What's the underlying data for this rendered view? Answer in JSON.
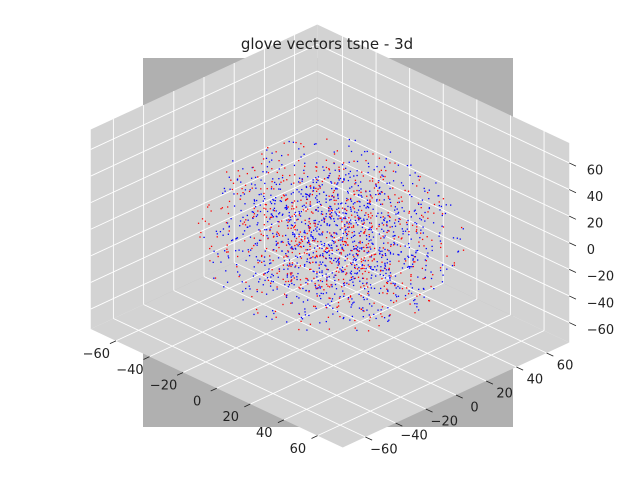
{
  "chart_data": {
    "type": "scatter",
    "projection": "3d",
    "title": "glove vectors tsne - 3d",
    "xlabel": "",
    "ylabel": "",
    "zlabel": "",
    "xlim": [
      -75,
      75
    ],
    "ylim": [
      -75,
      75
    ],
    "zlim": [
      -75,
      75
    ],
    "x_ticks": [
      "−60",
      "−40",
      "−20",
      "0",
      "20",
      "40",
      "60"
    ],
    "y_ticks": [
      "−60",
      "−40",
      "−20",
      "0",
      "20",
      "40",
      "60"
    ],
    "z_ticks": [
      "−60",
      "−40",
      "−20",
      "0",
      "20",
      "40",
      "60"
    ],
    "grid": true,
    "legend": "none",
    "series": [
      {
        "color": "#0000ff",
        "marker": "point",
        "count": 1100,
        "center": [
          0,
          0,
          0
        ],
        "radius": 60
      },
      {
        "color": "#ff0000",
        "marker": "point",
        "count": 700,
        "center": [
          0,
          0,
          0
        ],
        "radius": 60
      }
    ],
    "colors": {
      "axes_background": "#b0b0b0",
      "pane": "#d3d3d3",
      "grid": "#ffffff"
    }
  }
}
